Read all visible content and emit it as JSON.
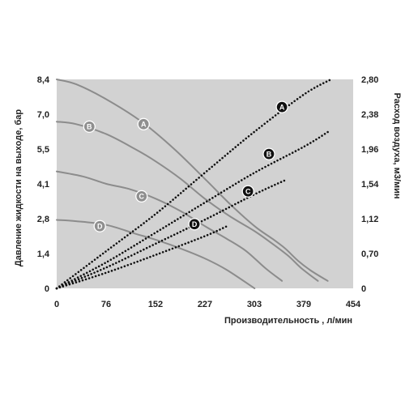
{
  "chart_data": {
    "type": "line",
    "title": "",
    "xlabel": "Производительность , л/мин",
    "ylabel_left": "Давление жидкости на выходе, бар",
    "ylabel_right": "Расход воздуха, м3/мин",
    "x_ticks": [
      "0",
      "76",
      "152",
      "227",
      "303",
      "379",
      "454"
    ],
    "y_left_ticks": [
      "0",
      "1,4",
      "2,8",
      "4,1",
      "5,5",
      "7,0",
      "8,4"
    ],
    "y_right_ticks": [
      "0",
      "0,70",
      "1,12",
      "1,54",
      "1,96",
      "2,38",
      "2,80"
    ],
    "xlim": [
      0,
      454
    ],
    "ylim_left": [
      0,
      8.4
    ],
    "ylim_right": [
      0,
      2.8
    ],
    "grid": false,
    "colors": {
      "plot_bg": "#d2d2d2",
      "pressure_line": "#8c8c8c",
      "air_line": "#111111",
      "light_marker": "#8f8f8f",
      "dark_marker": "#111111"
    },
    "pressure_curves": [
      {
        "name": "A",
        "x": [
          0,
          30,
          76,
          130,
          180,
          227,
          265,
          303,
          330,
          350,
          370,
          390,
          415
        ],
        "y": [
          8.4,
          8.2,
          7.6,
          6.7,
          5.6,
          4.4,
          3.4,
          2.5,
          2.0,
          1.6,
          1.1,
          0.7,
          0.3
        ]
      },
      {
        "name": "B",
        "x": [
          0,
          30,
          76,
          120,
          152,
          190,
          227,
          265,
          303,
          330,
          355,
          375,
          400
        ],
        "y": [
          6.7,
          6.6,
          6.2,
          5.6,
          5.1,
          4.4,
          3.6,
          2.9,
          2.3,
          1.8,
          1.3,
          0.8,
          0.3
        ]
      },
      {
        "name": "C",
        "x": [
          0,
          40,
          76,
          110,
          152,
          190,
          227,
          260,
          290,
          320,
          345
        ],
        "y": [
          4.7,
          4.5,
          4.2,
          4.0,
          3.6,
          3.1,
          2.5,
          2.0,
          1.5,
          0.8,
          0.3
        ]
      },
      {
        "name": "D",
        "x": [
          0,
          30,
          76,
          120,
          152,
          190,
          227,
          260,
          303
        ],
        "y": [
          2.75,
          2.7,
          2.55,
          2.2,
          1.95,
          1.6,
          1.2,
          0.75,
          0.0
        ]
      }
    ],
    "air_curves": [
      {
        "name": "A",
        "x": [
          0,
          76,
          152,
          227,
          303,
          379,
          420
        ],
        "y": [
          0,
          0.5,
          1.0,
          1.55,
          2.1,
          2.6,
          2.8
        ]
      },
      {
        "name": "B",
        "x": [
          0,
          76,
          152,
          227,
          303,
          379,
          416
        ],
        "y": [
          0,
          0.35,
          0.75,
          1.15,
          1.55,
          1.9,
          2.1
        ]
      },
      {
        "name": "C",
        "x": [
          0,
          76,
          152,
          227,
          303,
          350
        ],
        "y": [
          0,
          0.28,
          0.6,
          0.92,
          1.26,
          1.45
        ]
      },
      {
        "name": "D",
        "x": [
          0,
          76,
          152,
          227,
          260
        ],
        "y": [
          0,
          0.21,
          0.45,
          0.7,
          0.83
        ]
      }
    ],
    "pressure_markers": [
      {
        "label": "A",
        "x": 133,
        "y": 6.6
      },
      {
        "label": "B",
        "x": 50,
        "y": 6.5
      },
      {
        "label": "C",
        "x": 130,
        "y": 3.7
      },
      {
        "label": "D",
        "x": 66,
        "y": 2.5
      }
    ],
    "air_markers": [
      {
        "label": "A",
        "x": 345,
        "y": 2.43
      },
      {
        "label": "B",
        "x": 325,
        "y": 1.8
      },
      {
        "label": "C",
        "x": 293,
        "y": 1.3
      },
      {
        "label": "D",
        "x": 211,
        "y": 0.86
      }
    ]
  }
}
